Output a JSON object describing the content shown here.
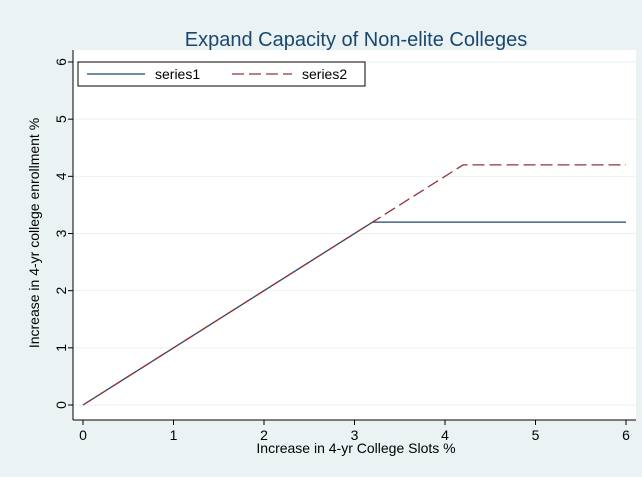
{
  "chart_data": {
    "type": "line",
    "title": "Expand Capacity of Non-elite Colleges",
    "xlabel": "Increase in 4-yr College Slots %",
    "ylabel": "Increase in 4-yr college enrollment %",
    "xlim": [
      0,
      6
    ],
    "ylim": [
      0,
      6
    ],
    "xticks": [
      0,
      1,
      2,
      3,
      4,
      5,
      6
    ],
    "yticks": [
      0,
      1,
      2,
      3,
      4,
      5,
      6
    ],
    "grid": "horizontal",
    "legend_position": "top-left",
    "series": [
      {
        "name": "series1",
        "color": "#1a476f",
        "style": "solid",
        "x": [
          0,
          3.2,
          6
        ],
        "y": [
          0,
          3.2,
          3.2
        ]
      },
      {
        "name": "series2",
        "color": "#90353b",
        "style": "dashed",
        "x": [
          0,
          4.2,
          6
        ],
        "y": [
          0,
          4.2,
          4.2
        ]
      }
    ]
  }
}
